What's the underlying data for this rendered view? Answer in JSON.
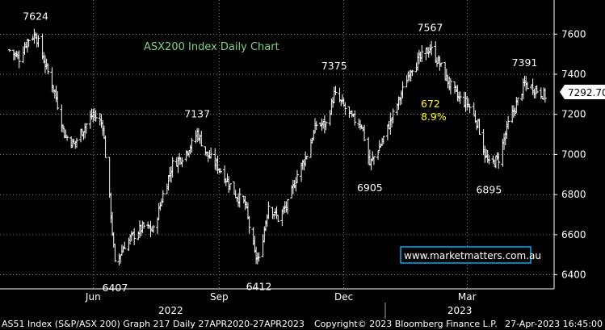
{
  "chart_data": {
    "type": "ohlc",
    "title": "ASX200 Index Daily Chart",
    "last_price_label": "7292.700",
    "ylim": [
      6330,
      7770
    ],
    "y_ticks": [
      6400,
      6600,
      6800,
      7000,
      7200,
      7400,
      7600
    ],
    "x_ticks": [
      "Jun",
      "Sep",
      "Dec",
      "Mar"
    ],
    "year_labels": [
      "2022",
      "2023"
    ],
    "grid": true,
    "colors": {
      "background": "#000000",
      "bars": "#ffffff",
      "grid": "#ffffff",
      "title": "#7fd37f",
      "gain": "#ffff00",
      "link": "#ffffff",
      "link_border": "#00aaff"
    },
    "annotations": [
      {
        "text": "7624",
        "date": "2022-04-20",
        "value": 7624
      },
      {
        "text": "6407",
        "date": "2022-06-17",
        "value": 6407
      },
      {
        "text": "7137",
        "date": "2022-08-16",
        "value": 7137
      },
      {
        "text": "6412",
        "date": "2022-09-30",
        "value": 6412
      },
      {
        "text": "7375",
        "date": "2022-11-24",
        "value": 7375
      },
      {
        "text": "6905",
        "date": "2022-12-20",
        "value": 6905
      },
      {
        "text": "7567",
        "date": "2023-02-02",
        "value": 7567
      },
      {
        "text": "6895",
        "date": "2023-03-17",
        "value": 6895
      },
      {
        "text": "7391",
        "date": "2023-04-12",
        "value": 7391
      }
    ],
    "gain_annotation": {
      "points": "672",
      "percent": "8.9%"
    },
    "watermark": "www.marketmatters.com.au",
    "series": {
      "name": "ASX200",
      "points": [
        [
          "2022-04-01",
          7520
        ],
        [
          "2022-04-08",
          7480
        ],
        [
          "2022-04-14",
          7570
        ],
        [
          "2022-04-20",
          7600
        ],
        [
          "2022-04-27",
          7450
        ],
        [
          "2022-05-04",
          7310
        ],
        [
          "2022-05-11",
          7100
        ],
        [
          "2022-05-18",
          7050
        ],
        [
          "2022-05-25",
          7130
        ],
        [
          "2022-06-01",
          7200
        ],
        [
          "2022-06-08",
          7150
        ],
        [
          "2022-06-14",
          6700
        ],
        [
          "2022-06-17",
          6450
        ],
        [
          "2022-06-24",
          6550
        ],
        [
          "2022-07-01",
          6600
        ],
        [
          "2022-07-08",
          6640
        ],
        [
          "2022-07-15",
          6620
        ],
        [
          "2022-07-22",
          6800
        ],
        [
          "2022-07-29",
          6950
        ],
        [
          "2022-08-05",
          6990
        ],
        [
          "2022-08-12",
          7050
        ],
        [
          "2022-08-16",
          7110
        ],
        [
          "2022-08-23",
          7000
        ],
        [
          "2022-08-30",
          6950
        ],
        [
          "2022-09-06",
          6880
        ],
        [
          "2022-09-13",
          6800
        ],
        [
          "2022-09-20",
          6750
        ],
        [
          "2022-09-27",
          6500
        ],
        [
          "2022-09-30",
          6470
        ],
        [
          "2022-10-07",
          6750
        ],
        [
          "2022-10-14",
          6680
        ],
        [
          "2022-10-21",
          6750
        ],
        [
          "2022-10-28",
          6900
        ],
        [
          "2022-11-04",
          7000
        ],
        [
          "2022-11-11",
          7150
        ],
        [
          "2022-11-18",
          7150
        ],
        [
          "2022-11-24",
          7300
        ],
        [
          "2022-11-30",
          7250
        ],
        [
          "2022-12-07",
          7180
        ],
        [
          "2022-12-14",
          7150
        ],
        [
          "2022-12-20",
          6950
        ],
        [
          "2022-12-28",
          7050
        ],
        [
          "2023-01-05",
          7180
        ],
        [
          "2023-01-12",
          7300
        ],
        [
          "2023-01-19",
          7430
        ],
        [
          "2023-01-26",
          7480
        ],
        [
          "2023-02-02",
          7530
        ],
        [
          "2023-02-09",
          7450
        ],
        [
          "2023-02-16",
          7350
        ],
        [
          "2023-02-23",
          7280
        ],
        [
          "2023-03-02",
          7250
        ],
        [
          "2023-03-09",
          7150
        ],
        [
          "2023-03-14",
          7000
        ],
        [
          "2023-03-17",
          6950
        ],
        [
          "2023-03-24",
          6980
        ],
        [
          "2023-03-31",
          7150
        ],
        [
          "2023-04-06",
          7250
        ],
        [
          "2023-04-12",
          7350
        ],
        [
          "2023-04-19",
          7330
        ],
        [
          "2023-04-27",
          7292.7
        ]
      ]
    }
  },
  "footer": {
    "left": "AS51 Index (S&P/ASX 200) Graph 217  Daily 27APR2020-27APR2023",
    "center": "Copyright© 2023 Bloomberg Finance L.P.",
    "right": "27-Apr-2023 16:45:00"
  }
}
